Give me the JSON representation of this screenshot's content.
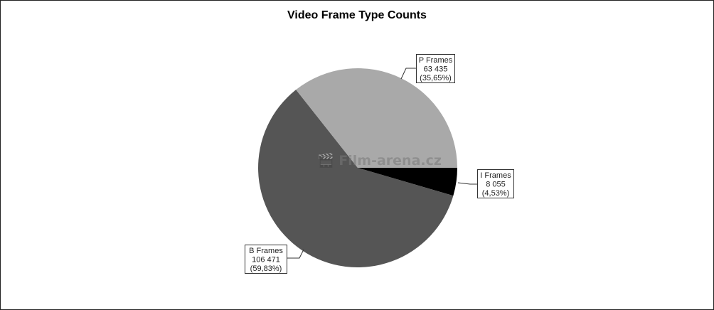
{
  "chart_data": {
    "type": "pie",
    "title": "Video Frame Type Counts",
    "slices": [
      {
        "name": "I Frames",
        "value": 8055,
        "value_label": "8 055",
        "percent_label": "(4,53%)",
        "color": "#000000"
      },
      {
        "name": "B Frames",
        "value": 106471,
        "value_label": "106 471",
        "percent_label": "(59,83%)",
        "color": "#555555"
      },
      {
        "name": "P Frames",
        "value": 63435,
        "value_label": "63 435",
        "percent_label": "(35,65%)",
        "color": "#a9a9a9"
      }
    ],
    "start_angle": "east, clockwise",
    "legend": "none (callout labels)"
  },
  "watermark": "Film-arena.cz"
}
